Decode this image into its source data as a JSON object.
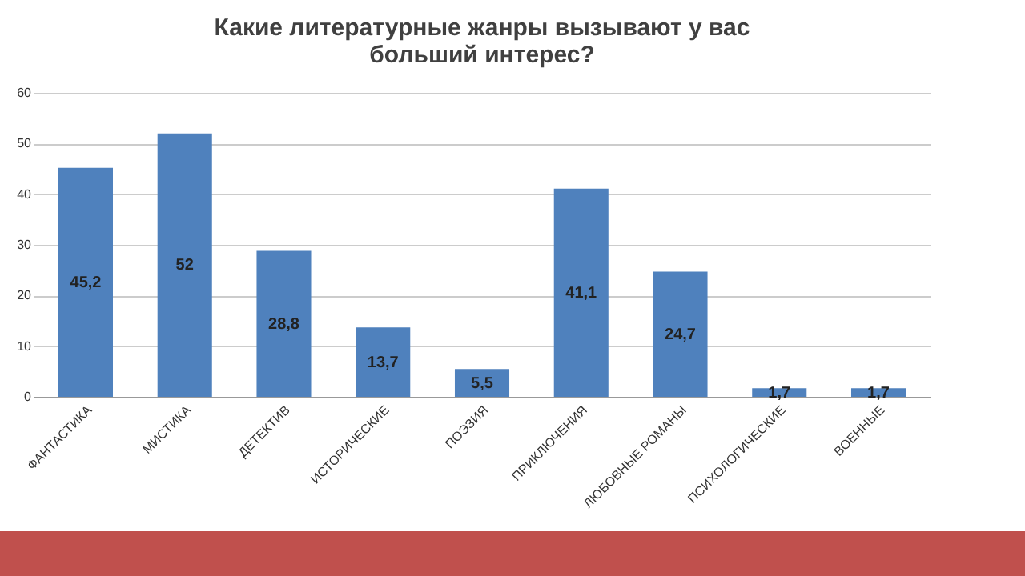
{
  "chart_data": {
    "type": "bar",
    "title": [
      "Какие литературные жанры вызывают у вас",
      "больший интерес?"
    ],
    "categories": [
      "ФАНТАСТИКА",
      "МИСТИКА",
      "ДЕТЕКТИВ",
      "ИСТОРИЧЕСКИЕ",
      "ПОЭЗИЯ",
      "ПРИКЛЮЧЕНИЯ",
      "ЛЮБОВНЫЕ РОМАНЫ",
      "ПСИХОЛОГИЧЕСКИЕ",
      "ВОЕННЫЕ"
    ],
    "values": [
      45.2,
      52,
      28.8,
      13.7,
      5.5,
      41.1,
      24.7,
      1.7,
      1.7
    ],
    "value_labels": [
      "45,2",
      "52",
      "28,8",
      "13,7",
      "5,5",
      "41,1",
      "24,7",
      "1,7",
      "1,7"
    ],
    "color": "#4f81bd",
    "ylim": [
      0,
      60
    ],
    "yticks": [
      0,
      10,
      20,
      30,
      40,
      50,
      60
    ],
    "grid": "y"
  }
}
